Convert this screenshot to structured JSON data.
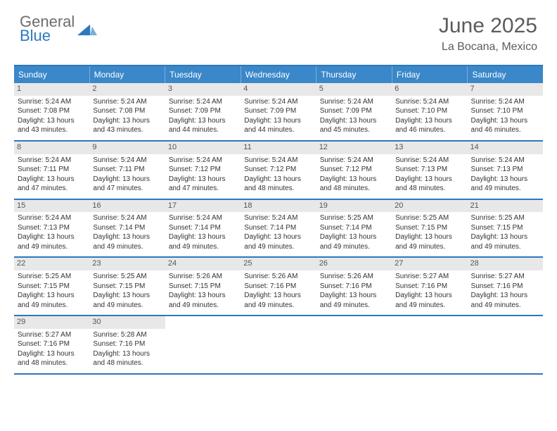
{
  "logo": {
    "gray": "General",
    "blue": "Blue"
  },
  "title": "June 2025",
  "location": "La Bocana, Mexico",
  "colors": {
    "header_bg": "#3a87c9",
    "border": "#2d78be",
    "daynum_bg": "#e8e8e8",
    "page_bg": "#ffffff",
    "text_gray": "#5c5c5c"
  },
  "typography": {
    "title_fontsize": 30,
    "location_fontsize": 16,
    "weekday_fontsize": 12,
    "body_fontsize": 10
  },
  "weekdays": [
    "Sunday",
    "Monday",
    "Tuesday",
    "Wednesday",
    "Thursday",
    "Friday",
    "Saturday"
  ],
  "weeks": [
    [
      {
        "n": "1",
        "sr": "Sunrise: 5:24 AM",
        "ss": "Sunset: 7:08 PM",
        "dl1": "Daylight: 13 hours",
        "dl2": "and 43 minutes."
      },
      {
        "n": "2",
        "sr": "Sunrise: 5:24 AM",
        "ss": "Sunset: 7:08 PM",
        "dl1": "Daylight: 13 hours",
        "dl2": "and 43 minutes."
      },
      {
        "n": "3",
        "sr": "Sunrise: 5:24 AM",
        "ss": "Sunset: 7:09 PM",
        "dl1": "Daylight: 13 hours",
        "dl2": "and 44 minutes."
      },
      {
        "n": "4",
        "sr": "Sunrise: 5:24 AM",
        "ss": "Sunset: 7:09 PM",
        "dl1": "Daylight: 13 hours",
        "dl2": "and 44 minutes."
      },
      {
        "n": "5",
        "sr": "Sunrise: 5:24 AM",
        "ss": "Sunset: 7:09 PM",
        "dl1": "Daylight: 13 hours",
        "dl2": "and 45 minutes."
      },
      {
        "n": "6",
        "sr": "Sunrise: 5:24 AM",
        "ss": "Sunset: 7:10 PM",
        "dl1": "Daylight: 13 hours",
        "dl2": "and 46 minutes."
      },
      {
        "n": "7",
        "sr": "Sunrise: 5:24 AM",
        "ss": "Sunset: 7:10 PM",
        "dl1": "Daylight: 13 hours",
        "dl2": "and 46 minutes."
      }
    ],
    [
      {
        "n": "8",
        "sr": "Sunrise: 5:24 AM",
        "ss": "Sunset: 7:11 PM",
        "dl1": "Daylight: 13 hours",
        "dl2": "and 47 minutes."
      },
      {
        "n": "9",
        "sr": "Sunrise: 5:24 AM",
        "ss": "Sunset: 7:11 PM",
        "dl1": "Daylight: 13 hours",
        "dl2": "and 47 minutes."
      },
      {
        "n": "10",
        "sr": "Sunrise: 5:24 AM",
        "ss": "Sunset: 7:12 PM",
        "dl1": "Daylight: 13 hours",
        "dl2": "and 47 minutes."
      },
      {
        "n": "11",
        "sr": "Sunrise: 5:24 AM",
        "ss": "Sunset: 7:12 PM",
        "dl1": "Daylight: 13 hours",
        "dl2": "and 48 minutes."
      },
      {
        "n": "12",
        "sr": "Sunrise: 5:24 AM",
        "ss": "Sunset: 7:12 PM",
        "dl1": "Daylight: 13 hours",
        "dl2": "and 48 minutes."
      },
      {
        "n": "13",
        "sr": "Sunrise: 5:24 AM",
        "ss": "Sunset: 7:13 PM",
        "dl1": "Daylight: 13 hours",
        "dl2": "and 48 minutes."
      },
      {
        "n": "14",
        "sr": "Sunrise: 5:24 AM",
        "ss": "Sunset: 7:13 PM",
        "dl1": "Daylight: 13 hours",
        "dl2": "and 49 minutes."
      }
    ],
    [
      {
        "n": "15",
        "sr": "Sunrise: 5:24 AM",
        "ss": "Sunset: 7:13 PM",
        "dl1": "Daylight: 13 hours",
        "dl2": "and 49 minutes."
      },
      {
        "n": "16",
        "sr": "Sunrise: 5:24 AM",
        "ss": "Sunset: 7:14 PM",
        "dl1": "Daylight: 13 hours",
        "dl2": "and 49 minutes."
      },
      {
        "n": "17",
        "sr": "Sunrise: 5:24 AM",
        "ss": "Sunset: 7:14 PM",
        "dl1": "Daylight: 13 hours",
        "dl2": "and 49 minutes."
      },
      {
        "n": "18",
        "sr": "Sunrise: 5:24 AM",
        "ss": "Sunset: 7:14 PM",
        "dl1": "Daylight: 13 hours",
        "dl2": "and 49 minutes."
      },
      {
        "n": "19",
        "sr": "Sunrise: 5:25 AM",
        "ss": "Sunset: 7:14 PM",
        "dl1": "Daylight: 13 hours",
        "dl2": "and 49 minutes."
      },
      {
        "n": "20",
        "sr": "Sunrise: 5:25 AM",
        "ss": "Sunset: 7:15 PM",
        "dl1": "Daylight: 13 hours",
        "dl2": "and 49 minutes."
      },
      {
        "n": "21",
        "sr": "Sunrise: 5:25 AM",
        "ss": "Sunset: 7:15 PM",
        "dl1": "Daylight: 13 hours",
        "dl2": "and 49 minutes."
      }
    ],
    [
      {
        "n": "22",
        "sr": "Sunrise: 5:25 AM",
        "ss": "Sunset: 7:15 PM",
        "dl1": "Daylight: 13 hours",
        "dl2": "and 49 minutes."
      },
      {
        "n": "23",
        "sr": "Sunrise: 5:25 AM",
        "ss": "Sunset: 7:15 PM",
        "dl1": "Daylight: 13 hours",
        "dl2": "and 49 minutes."
      },
      {
        "n": "24",
        "sr": "Sunrise: 5:26 AM",
        "ss": "Sunset: 7:15 PM",
        "dl1": "Daylight: 13 hours",
        "dl2": "and 49 minutes."
      },
      {
        "n": "25",
        "sr": "Sunrise: 5:26 AM",
        "ss": "Sunset: 7:16 PM",
        "dl1": "Daylight: 13 hours",
        "dl2": "and 49 minutes."
      },
      {
        "n": "26",
        "sr": "Sunrise: 5:26 AM",
        "ss": "Sunset: 7:16 PM",
        "dl1": "Daylight: 13 hours",
        "dl2": "and 49 minutes."
      },
      {
        "n": "27",
        "sr": "Sunrise: 5:27 AM",
        "ss": "Sunset: 7:16 PM",
        "dl1": "Daylight: 13 hours",
        "dl2": "and 49 minutes."
      },
      {
        "n": "28",
        "sr": "Sunrise: 5:27 AM",
        "ss": "Sunset: 7:16 PM",
        "dl1": "Daylight: 13 hours",
        "dl2": "and 49 minutes."
      }
    ],
    [
      {
        "n": "29",
        "sr": "Sunrise: 5:27 AM",
        "ss": "Sunset: 7:16 PM",
        "dl1": "Daylight: 13 hours",
        "dl2": "and 48 minutes."
      },
      {
        "n": "30",
        "sr": "Sunrise: 5:28 AM",
        "ss": "Sunset: 7:16 PM",
        "dl1": "Daylight: 13 hours",
        "dl2": "and 48 minutes."
      },
      null,
      null,
      null,
      null,
      null
    ]
  ]
}
